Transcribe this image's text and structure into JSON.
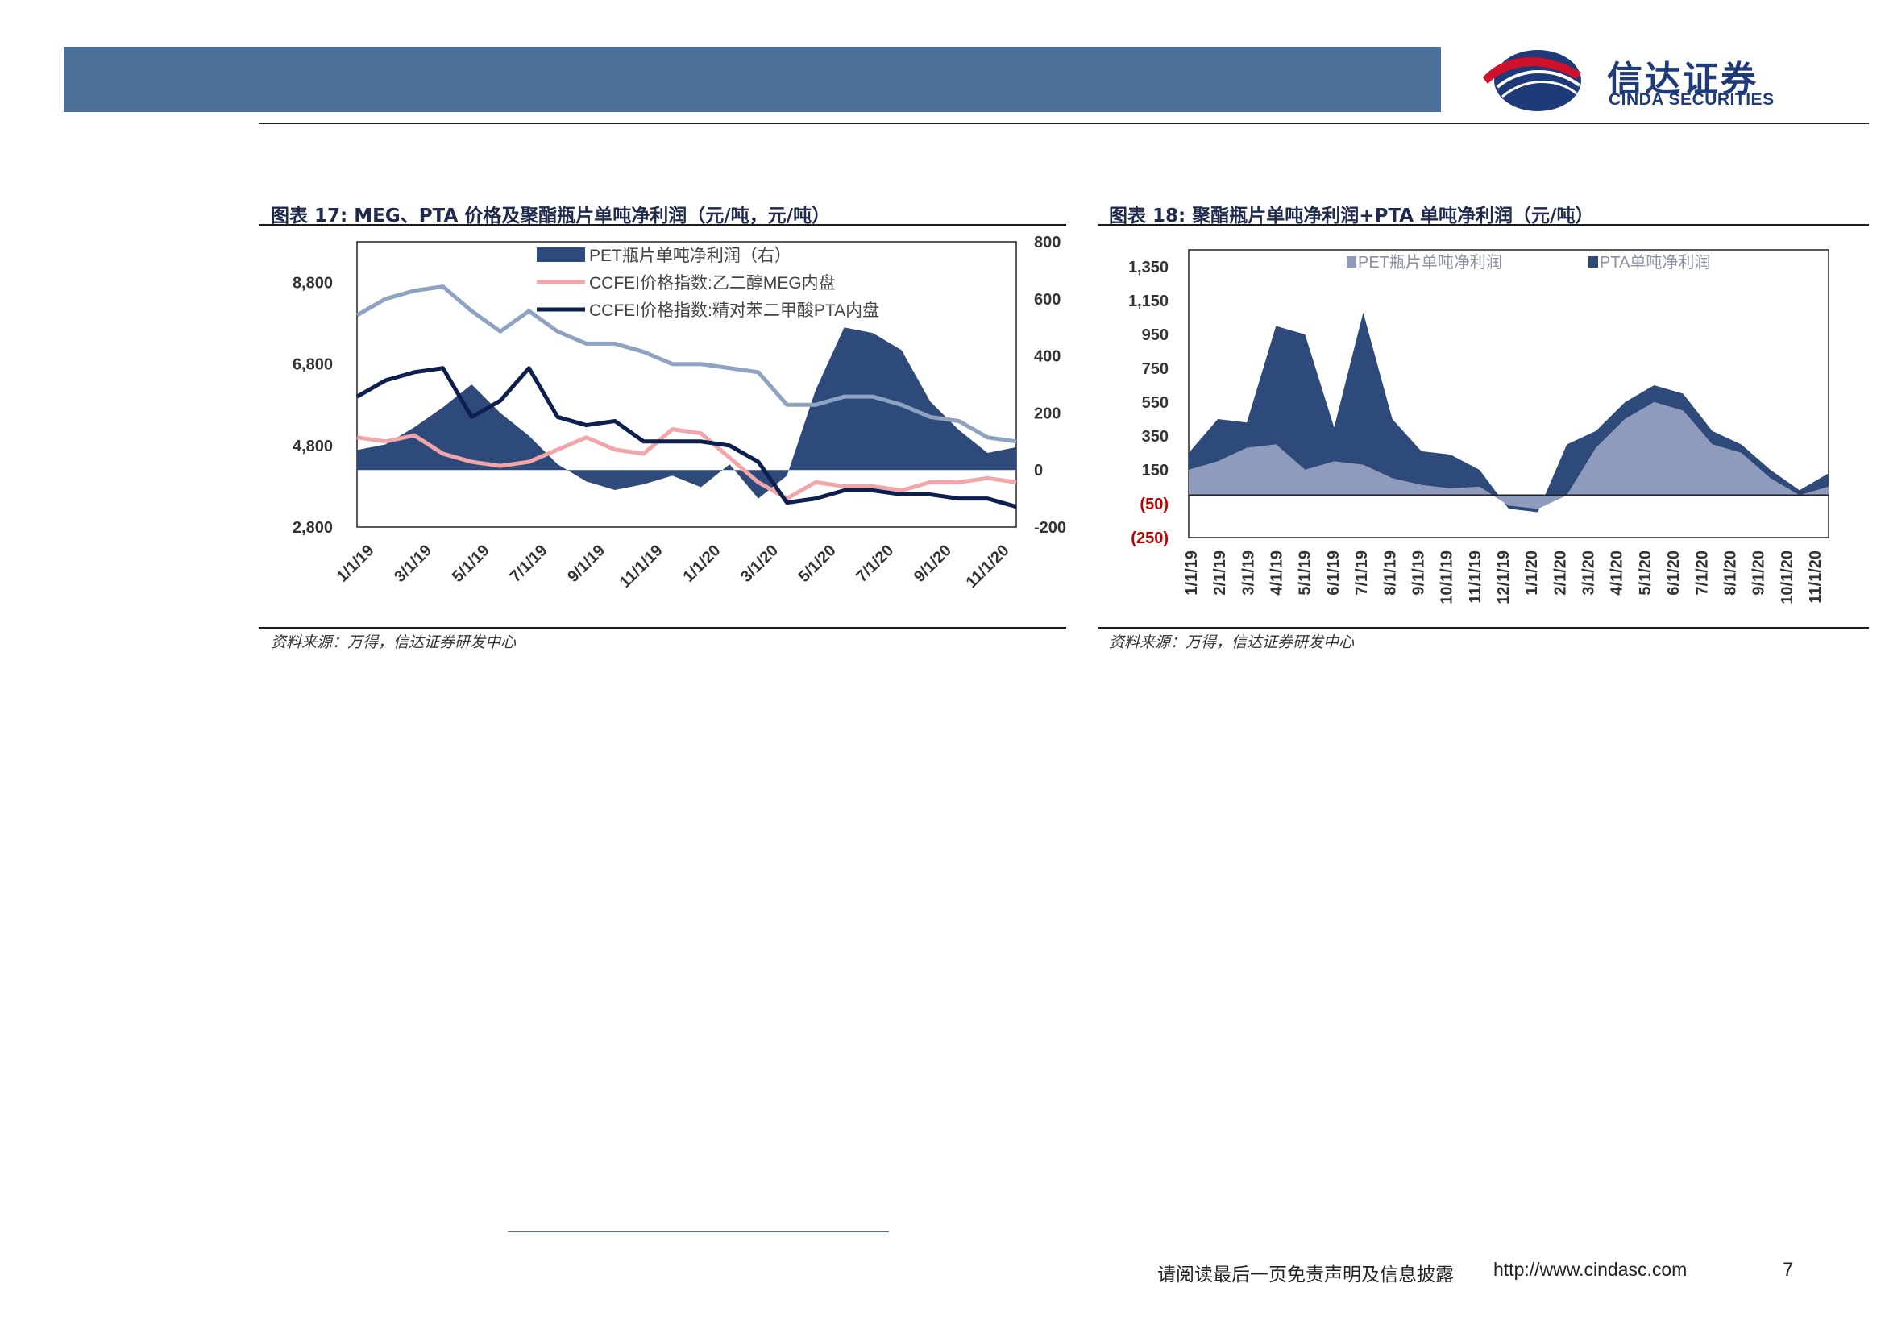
{
  "header": {
    "brand_cn": "信达证券",
    "brand_en": "CINDA SECURITIES",
    "colors": {
      "bar": "#4a6f99",
      "brand": "#1e3a78",
      "logo_red": "#d0112b"
    }
  },
  "figures": [
    {
      "title": "图表 17:  MEG、PTA 价格及聚酯瓶片单吨净利润（元/吨，元/吨）",
      "source": "资料来源：万得，信达证券研发中心"
    },
    {
      "title": "图表 18:  聚酯瓶片单吨净利润+PTA 单吨净利润（元/吨）",
      "source": "资料来源：万得，信达证券研发中心"
    }
  ],
  "chart_data": [
    {
      "type": "line",
      "x_ticks": [
        "1/1/19",
        "3/1/19",
        "5/1/19",
        "7/1/19",
        "9/1/19",
        "11/1/19",
        "1/1/20",
        "3/1/20",
        "5/1/20",
        "7/1/20",
        "9/1/20",
        "11/1/20"
      ],
      "y_left_ticks": [
        "8,800",
        "6,800",
        "4,800",
        "2,800"
      ],
      "y_right_ticks": [
        "800",
        "600",
        "400",
        "200",
        "0",
        "-200"
      ],
      "ylim_left": [
        2800,
        9800
      ],
      "ylim_right": [
        -200,
        800
      ],
      "legend": [
        "PET瓶片单吨净利润（右）",
        "CCFEI价格指数:乙二醇MEG内盘",
        "CCFEI价格指数:精对苯二甲酸PTA内盘"
      ],
      "legend_position": "top-center",
      "series": [
        {
          "name": "PET瓶片单吨净利润（右）",
          "axis": "right",
          "type": "area",
          "color": "#2e4a7a",
          "x_index": [
            0,
            1,
            2,
            3,
            4,
            5,
            6,
            7,
            8,
            9,
            10,
            11,
            12,
            13,
            14,
            15,
            16,
            17,
            18,
            19,
            20,
            21,
            22,
            23
          ],
          "values": [
            70,
            90,
            150,
            220,
            300,
            200,
            120,
            20,
            -40,
            -70,
            -50,
            -20,
            -60,
            20,
            -100,
            -20,
            280,
            500,
            480,
            420,
            240,
            140,
            60,
            80
          ]
        },
        {
          "name": "CCFEI价格指数:乙二醇MEG内盘",
          "axis": "left",
          "type": "line",
          "color": "#f2a6aa",
          "x_index": [
            0,
            1,
            2,
            3,
            4,
            5,
            6,
            7,
            8,
            9,
            10,
            11,
            12,
            13,
            14,
            15,
            16,
            17,
            18,
            19,
            20,
            21,
            22,
            23
          ],
          "values": [
            5000,
            4900,
            5050,
            4600,
            4400,
            4300,
            4400,
            4700,
            5000,
            4700,
            4600,
            5200,
            5100,
            4500,
            3900,
            3500,
            3900,
            3800,
            3800,
            3700,
            3900,
            3900,
            4000,
            3900
          ]
        },
        {
          "name": "CCFEI价格指数:精对苯二甲酸PTA内盘",
          "axis": "left",
          "type": "line",
          "color": "#0c1f4f",
          "x_index": [
            0,
            1,
            2,
            3,
            4,
            5,
            6,
            7,
            8,
            9,
            10,
            11,
            12,
            13,
            14,
            15,
            16,
            17,
            18,
            19,
            20,
            21,
            22,
            23
          ],
          "values": [
            6000,
            6400,
            6600,
            6700,
            5500,
            5900,
            6700,
            5500,
            5300,
            5400,
            4900,
            4900,
            4900,
            4800,
            4400,
            3400,
            3500,
            3700,
            3700,
            3600,
            3600,
            3500,
            3500,
            3300
          ]
        },
        {
          "name": "",
          "axis": "left",
          "type": "line",
          "color": "#8ea3c2",
          "x_index": [
            0,
            1,
            2,
            3,
            4,
            5,
            6,
            7,
            8,
            9,
            10,
            11,
            12,
            13,
            14,
            15,
            16,
            17,
            18,
            19,
            20,
            21,
            22,
            23
          ],
          "values": [
            8000,
            8400,
            8600,
            8700,
            8100,
            7600,
            8100,
            7600,
            7300,
            7300,
            7100,
            6800,
            6800,
            6700,
            6600,
            5800,
            5800,
            6000,
            6000,
            5800,
            5500,
            5400,
            5000,
            4900
          ]
        }
      ]
    },
    {
      "type": "area",
      "x_ticks": [
        "1/1/19",
        "2/1/19",
        "3/1/19",
        "4/1/19",
        "5/1/19",
        "6/1/19",
        "7/1/19",
        "8/1/19",
        "9/1/19",
        "10/1/19",
        "11/1/19",
        "12/1/19",
        "1/1/20",
        "2/1/20",
        "3/1/20",
        "4/1/20",
        "5/1/20",
        "6/1/20",
        "7/1/20",
        "8/1/20",
        "9/1/20",
        "10/1/20",
        "11/1/20"
      ],
      "y_ticks": [
        "1,350",
        "1,150",
        "950",
        "750",
        "550",
        "350",
        "150",
        "(50)",
        "(250)"
      ],
      "ylim": [
        -250,
        1450
      ],
      "legend": [
        "PET瓶片单吨净利润",
        "PTA单吨净利润"
      ],
      "legend_position": "top",
      "series": [
        {
          "name": "PET瓶片单吨净利润",
          "color": "#8e9bbd",
          "values": [
            150,
            200,
            280,
            300,
            150,
            200,
            180,
            100,
            60,
            40,
            50,
            -60,
            -80,
            0,
            280,
            450,
            550,
            500,
            300,
            250,
            100,
            0,
            50
          ]
        },
        {
          "name": "PTA单吨净利润",
          "color": "#2e4a7a",
          "values": [
            100,
            250,
            150,
            700,
            800,
            200,
            900,
            350,
            200,
            200,
            100,
            -80,
            -100,
            300,
            100,
            100,
            100,
            100,
            80,
            50,
            50,
            30,
            80
          ]
        }
      ],
      "negative_label_color": "#c00000"
    }
  ],
  "footer": {
    "disclaimer": "请阅读最后一页免责声明及信息披露",
    "url": "http://www.cindasc.com",
    "page": "7"
  }
}
